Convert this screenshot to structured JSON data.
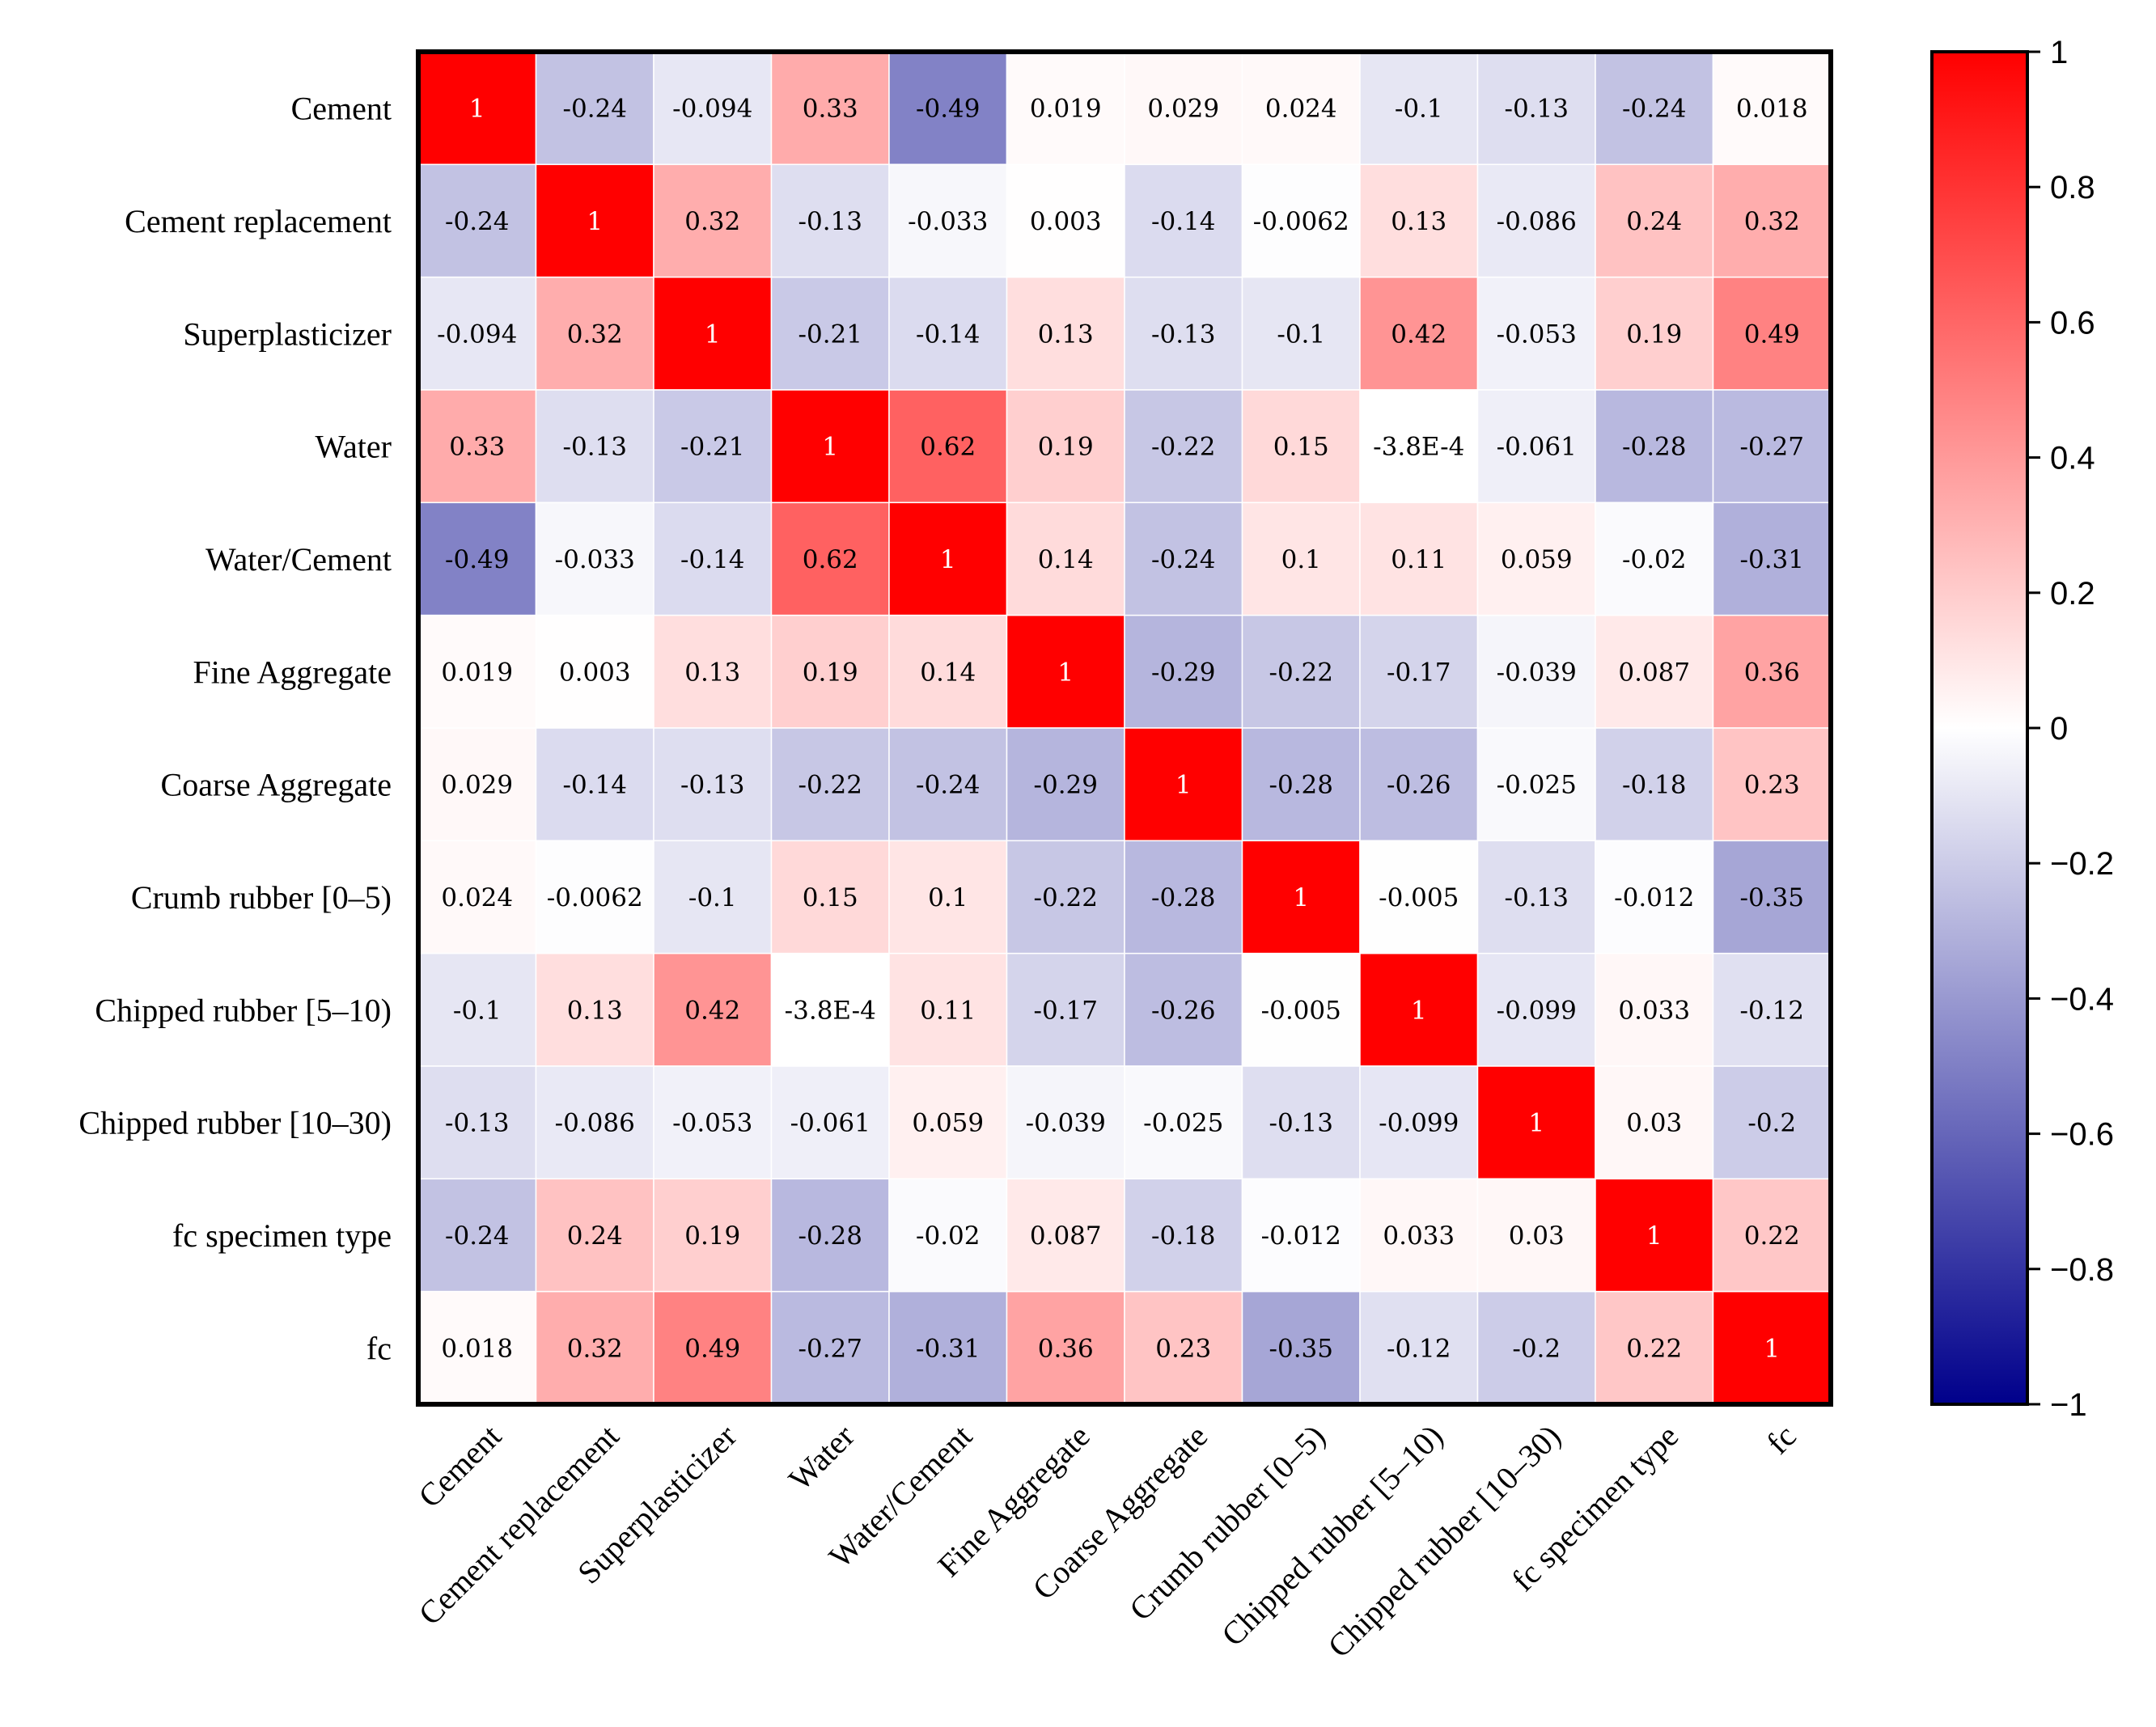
{
  "chart_data": {
    "type": "heatmap",
    "title": "",
    "labels": [
      "Cement",
      "Cement replacement",
      "Superplasticizer",
      "Water",
      "Water/Cement",
      "Fine Aggregate",
      "Coarse Aggregate",
      "Crumb rubber [0–5)",
      "Chipped rubber [5–10)",
      "Chipped rubber [10–30)",
      "fc specimen type",
      "fc"
    ],
    "values": [
      [
        1,
        -0.24,
        -0.094,
        0.33,
        -0.49,
        0.019,
        0.029,
        0.024,
        -0.1,
        -0.13,
        -0.24,
        0.018
      ],
      [
        -0.24,
        1,
        0.32,
        -0.13,
        -0.033,
        0.003,
        -0.14,
        -0.0062,
        0.13,
        -0.086,
        0.24,
        0.32
      ],
      [
        -0.094,
        0.32,
        1,
        -0.21,
        -0.14,
        0.13,
        -0.13,
        -0.1,
        0.42,
        -0.053,
        0.19,
        0.49
      ],
      [
        0.33,
        -0.13,
        -0.21,
        1,
        0.62,
        0.19,
        -0.22,
        0.15,
        -0.00038,
        -0.061,
        -0.28,
        -0.27
      ],
      [
        -0.49,
        -0.033,
        -0.14,
        0.62,
        1,
        0.14,
        -0.24,
        0.1,
        0.11,
        0.059,
        -0.02,
        -0.31
      ],
      [
        0.019,
        0.003,
        0.13,
        0.19,
        0.14,
        1,
        -0.29,
        -0.22,
        -0.17,
        -0.039,
        0.087,
        0.36
      ],
      [
        0.029,
        -0.14,
        -0.13,
        -0.22,
        -0.24,
        -0.29,
        1,
        -0.28,
        -0.26,
        -0.025,
        -0.18,
        0.23
      ],
      [
        0.024,
        -0.0062,
        -0.1,
        0.15,
        0.1,
        -0.22,
        -0.28,
        1,
        -0.005,
        -0.13,
        -0.012,
        -0.35
      ],
      [
        -0.1,
        0.13,
        0.42,
        -0.00038,
        0.11,
        -0.17,
        -0.26,
        -0.005,
        1,
        -0.099,
        0.033,
        -0.12
      ],
      [
        -0.13,
        -0.086,
        -0.053,
        -0.061,
        0.059,
        -0.039,
        -0.025,
        -0.13,
        -0.099,
        1,
        0.03,
        -0.2
      ],
      [
        -0.24,
        0.24,
        0.19,
        -0.28,
        -0.02,
        0.087,
        -0.18,
        -0.012,
        0.033,
        0.03,
        1,
        0.22
      ],
      [
        0.018,
        0.32,
        0.49,
        -0.27,
        -0.31,
        0.36,
        0.23,
        -0.35,
        -0.12,
        -0.2,
        0.22,
        1
      ]
    ],
    "value_text": [
      [
        "1",
        "-0.24",
        "-0.094",
        "0.33",
        "-0.49",
        "0.019",
        "0.029",
        "0.024",
        "-0.1",
        "-0.13",
        "-0.24",
        "0.018"
      ],
      [
        "-0.24",
        "1",
        "0.32",
        "-0.13",
        "-0.033",
        "0.003",
        "-0.14",
        "-0.0062",
        "0.13",
        "-0.086",
        "0.24",
        "0.32"
      ],
      [
        "-0.094",
        "0.32",
        "1",
        "-0.21",
        "-0.14",
        "0.13",
        "-0.13",
        "-0.1",
        "0.42",
        "-0.053",
        "0.19",
        "0.49"
      ],
      [
        "0.33",
        "-0.13",
        "-0.21",
        "1",
        "0.62",
        "0.19",
        "-0.22",
        "0.15",
        "-3.8E-4",
        "-0.061",
        "-0.28",
        "-0.27"
      ],
      [
        "-0.49",
        "-0.033",
        "-0.14",
        "0.62",
        "1",
        "0.14",
        "-0.24",
        "0.1",
        "0.11",
        "0.059",
        "-0.02",
        "-0.31"
      ],
      [
        "0.019",
        "0.003",
        "0.13",
        "0.19",
        "0.14",
        "1",
        "-0.29",
        "-0.22",
        "-0.17",
        "-0.039",
        "0.087",
        "0.36"
      ],
      [
        "0.029",
        "-0.14",
        "-0.13",
        "-0.22",
        "-0.24",
        "-0.29",
        "1",
        "-0.28",
        "-0.26",
        "-0.025",
        "-0.18",
        "0.23"
      ],
      [
        "0.024",
        "-0.0062",
        "-0.1",
        "0.15",
        "0.1",
        "-0.22",
        "-0.28",
        "1",
        "-0.005",
        "-0.13",
        "-0.012",
        "-0.35"
      ],
      [
        "-0.1",
        "0.13",
        "0.42",
        "-3.8E-4",
        "0.11",
        "-0.17",
        "-0.26",
        "-0.005",
        "1",
        "-0.099",
        "0.033",
        "-0.12"
      ],
      [
        "-0.13",
        "-0.086",
        "-0.053",
        "-0.061",
        "0.059",
        "-0.039",
        "-0.025",
        "-0.13",
        "-0.099",
        "1",
        "0.03",
        "-0.2"
      ],
      [
        "-0.24",
        "0.24",
        "0.19",
        "-0.28",
        "-0.02",
        "0.087",
        "-0.18",
        "-0.012",
        "0.033",
        "0.03",
        "1",
        "0.22"
      ],
      [
        "0.018",
        "0.32",
        "0.49",
        "-0.27",
        "-0.31",
        "0.36",
        "0.23",
        "-0.35",
        "-0.12",
        "-0.2",
        "0.22",
        "1"
      ]
    ],
    "colorbar": {
      "range": [
        -1,
        1
      ],
      "ticks": [
        1,
        0.8,
        0.6,
        0.4,
        0.2,
        0,
        -0.2,
        -0.4,
        -0.6,
        -0.8,
        -1
      ],
      "tick_labels": [
        "1",
        "0.8",
        "0.6",
        "0.4",
        "0.2",
        "0",
        "−0.2",
        "−0.4",
        "−0.6",
        "−0.8",
        "−1"
      ],
      "colors": {
        "max": "#ff0000",
        "mid": "#ffffff",
        "min": "#00008b"
      }
    }
  }
}
